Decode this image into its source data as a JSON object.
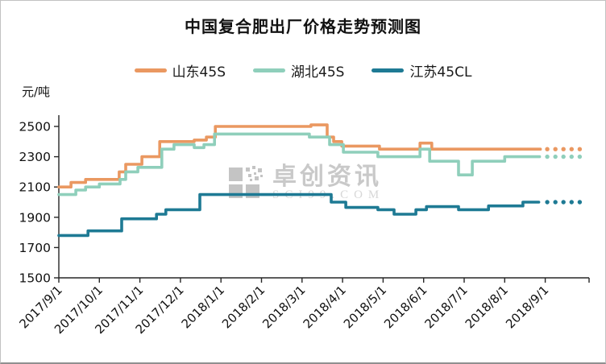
{
  "title": "中国复合肥出厂价格走势预测图",
  "watermark": {
    "brand": "卓创资讯",
    "domain": "SCI99.COM",
    "color": "#c6c6c6"
  },
  "axis_color": "#262626",
  "chart_data": {
    "type": "line",
    "subtype": "step-after-with-dotted-forecast",
    "title": "中国复合肥出厂价格走势预测图",
    "xlabel": "",
    "ylabel": "元/吨",
    "grid": false,
    "legend_position": "top-center",
    "x_tick_labels": [
      "2017/9/1",
      "2017/10/1",
      "2017/11/1",
      "2017/12/1",
      "2018/1/1",
      "2018/2/1",
      "2018/3/1",
      "2018/4/1",
      "2018/5/1",
      "2018/6/1",
      "2018/7/1",
      "2018/8/1",
      "2018/9/1"
    ],
    "y_ticks": [
      1500,
      1700,
      1900,
      2100,
      2300,
      2500
    ],
    "ylim": [
      1500,
      2575
    ],
    "xlim_months": [
      0,
      13.1
    ],
    "x_unit": "months from 2017/9/1",
    "y_unit": "元/吨",
    "series": [
      {
        "id": "shandong-45s",
        "name": "山东45S",
        "color": "#EA9861",
        "points": [
          [
            0,
            2100
          ],
          [
            0.3,
            2130
          ],
          [
            0.66,
            2150
          ],
          [
            1.49,
            2200
          ],
          [
            1.65,
            2250
          ],
          [
            2.05,
            2300
          ],
          [
            2.49,
            2400
          ],
          [
            3.34,
            2410
          ],
          [
            3.64,
            2430
          ],
          [
            3.86,
            2500
          ],
          [
            6.22,
            2510
          ],
          [
            6.62,
            2430
          ],
          [
            6.78,
            2400
          ],
          [
            6.98,
            2370
          ],
          [
            7.91,
            2350
          ],
          [
            8.91,
            2390
          ],
          [
            9.2,
            2350
          ]
        ],
        "solid_end_month": 11.88,
        "forecast_value": 2350
      },
      {
        "id": "hubei-45s",
        "name": "湖北45S",
        "color": "#8FCFBB",
        "points": [
          [
            0,
            2050
          ],
          [
            0.42,
            2080
          ],
          [
            0.66,
            2100
          ],
          [
            1.0,
            2120
          ],
          [
            1.51,
            2150
          ],
          [
            1.65,
            2200
          ],
          [
            1.95,
            2230
          ],
          [
            2.54,
            2350
          ],
          [
            2.84,
            2380
          ],
          [
            3.34,
            2360
          ],
          [
            3.58,
            2380
          ],
          [
            3.84,
            2450
          ],
          [
            6.18,
            2430
          ],
          [
            6.68,
            2380
          ],
          [
            7.02,
            2330
          ],
          [
            7.87,
            2300
          ],
          [
            8.91,
            2350
          ],
          [
            9.15,
            2270
          ],
          [
            9.86,
            2180
          ],
          [
            10.2,
            2270
          ],
          [
            11.0,
            2300
          ]
        ],
        "solid_end_month": 11.86,
        "forecast_value": 2300
      },
      {
        "id": "jiangsu-45cl",
        "name": "江苏45CL",
        "color": "#1E7A94",
        "points": [
          [
            0,
            1780
          ],
          [
            0.72,
            1810
          ],
          [
            1.55,
            1890
          ],
          [
            2.41,
            1920
          ],
          [
            2.64,
            1950
          ],
          [
            3.48,
            2050
          ],
          [
            6.72,
            2000
          ],
          [
            7.08,
            1965
          ],
          [
            7.87,
            1950
          ],
          [
            8.27,
            1920
          ],
          [
            8.81,
            1950
          ],
          [
            9.07,
            1970
          ],
          [
            9.86,
            1950
          ],
          [
            10.6,
            1975
          ],
          [
            11.45,
            2000
          ]
        ],
        "solid_end_month": 11.84,
        "forecast_value": 2000
      }
    ],
    "forecast": {
      "start_month": 12.05,
      "step_month": 0.2,
      "count": 5,
      "style": "dotted"
    }
  }
}
